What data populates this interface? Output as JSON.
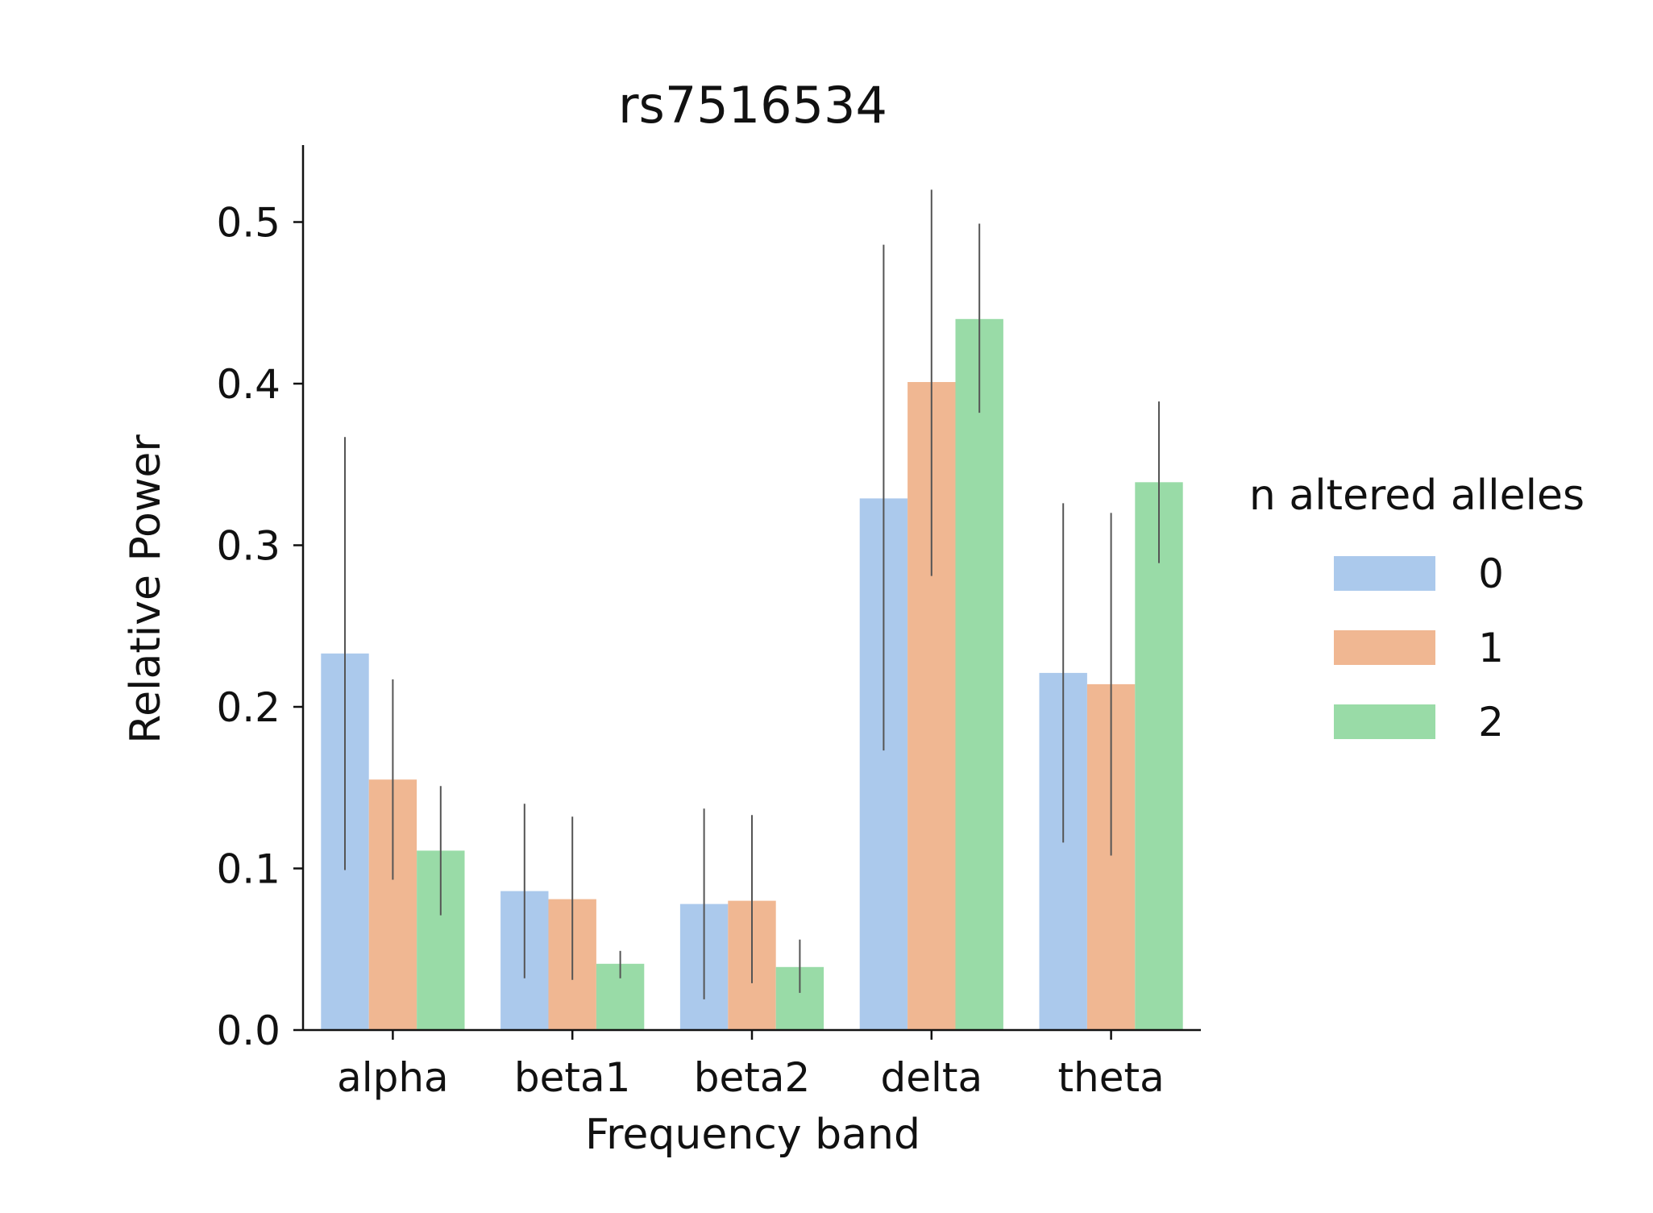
{
  "chart_data": {
    "type": "bar",
    "title": "rs7516534",
    "xlabel": "Frequency band",
    "ylabel": "Relative Power",
    "categories": [
      "alpha",
      "beta1",
      "beta2",
      "delta",
      "theta"
    ],
    "ylim": [
      0,
      0.545
    ],
    "yticks": [
      "0.0",
      "0.1",
      "0.2",
      "0.3",
      "0.4",
      "0.5"
    ],
    "grid": false,
    "legend": {
      "title": "n altered alleles",
      "position": "right"
    },
    "series": [
      {
        "name": "0",
        "color": "#abc9ec",
        "values": [
          0.233,
          0.086,
          0.078,
          0.329,
          0.221
        ],
        "err_low": [
          0.099,
          0.032,
          0.019,
          0.173,
          0.116
        ],
        "err_high": [
          0.367,
          0.14,
          0.137,
          0.486,
          0.326
        ]
      },
      {
        "name": "1",
        "color": "#f0b792",
        "values": [
          0.155,
          0.081,
          0.08,
          0.401,
          0.214
        ],
        "err_low": [
          0.093,
          0.031,
          0.029,
          0.281,
          0.108
        ],
        "err_high": [
          0.217,
          0.132,
          0.133,
          0.52,
          0.32
        ]
      },
      {
        "name": "2",
        "color": "#99dba7",
        "values": [
          0.111,
          0.041,
          0.039,
          0.44,
          0.339
        ],
        "err_low": [
          0.071,
          0.032,
          0.023,
          0.382,
          0.289
        ],
        "err_high": [
          0.151,
          0.049,
          0.056,
          0.499,
          0.389
        ]
      }
    ]
  }
}
